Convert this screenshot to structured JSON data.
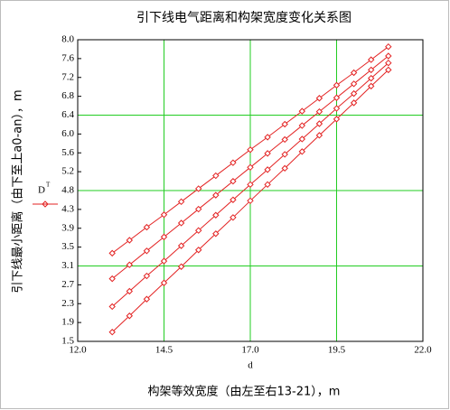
{
  "chart_data": {
    "type": "line",
    "title": "引下线电气距离和构架宽度变化关系图",
    "x_label": "d",
    "caption": "构架等效宽度（由左至右13-21），m",
    "y_label": "引下线最小距离（由下至上a0-an），m",
    "legend": {
      "label": "D",
      "sup": "T"
    },
    "color": "#e32222",
    "grid": true,
    "grid_color": "#22cc22",
    "x": [
      13,
      13.5,
      14,
      14.5,
      15,
      15.5,
      16,
      16.5,
      17,
      17.5,
      18,
      18.5,
      19,
      19.5,
      20,
      20.5,
      21
    ],
    "series": [
      {
        "values": [
          3.4,
          3.68,
          3.96,
          4.23,
          4.51,
          4.79,
          5.07,
          5.35,
          5.63,
          5.9,
          6.18,
          6.46,
          6.74,
          7.02,
          7.29,
          7.57,
          7.85
        ]
      },
      {
        "values": [
          2.85,
          3.15,
          3.45,
          3.75,
          4.05,
          4.35,
          4.65,
          4.95,
          5.25,
          5.55,
          5.85,
          6.15,
          6.45,
          6.75,
          7.05,
          7.35,
          7.65
        ]
      },
      {
        "values": [
          2.25,
          2.58,
          2.91,
          3.23,
          3.56,
          3.89,
          4.22,
          4.55,
          4.88,
          5.2,
          5.53,
          5.86,
          6.19,
          6.52,
          6.84,
          7.17,
          7.5
        ]
      },
      {
        "values": [
          1.7,
          2.05,
          2.41,
          2.76,
          3.11,
          3.47,
          3.82,
          4.17,
          4.53,
          4.88,
          5.23,
          5.59,
          5.94,
          6.29,
          6.64,
          7.0,
          7.35
        ]
      }
    ],
    "xlim": [
      12,
      22
    ],
    "xticks": [
      {
        "value": 12,
        "label": "12.0"
      },
      {
        "value": 14.5,
        "label": "14.5"
      },
      {
        "value": 17,
        "label": "17.0"
      },
      {
        "value": 19.5,
        "label": "19.5"
      },
      {
        "value": 22,
        "label": "22.0"
      }
    ],
    "ylim": [
      1.5,
      8
    ],
    "yticks": [
      1.5,
      {
        "value": 1.90625,
        "label": "1.9"
      },
      {
        "value": 2.3125,
        "label": "2.3"
      },
      {
        "value": 2.71875,
        "label": "2.7"
      },
      {
        "value": 3.125,
        "label": "3.1"
      },
      {
        "value": 3.53125,
        "label": "3.5"
      },
      {
        "value": 3.9375,
        "label": "3.9"
      },
      {
        "value": 4.34375,
        "label": "4.3"
      },
      {
        "value": 4.75,
        "label": "4.8"
      },
      {
        "value": 5.15625,
        "label": "5.2"
      },
      {
        "value": 5.5625,
        "label": "5.6"
      },
      {
        "value": 5.96875,
        "label": "6.0"
      },
      {
        "value": 6.375,
        "label": "6.4"
      },
      {
        "value": 6.78125,
        "label": "6.8"
      },
      {
        "value": 7.1875,
        "label": "7.2"
      },
      {
        "value": 7.59375,
        "label": "7.6"
      },
      {
        "value": 8,
        "label": "8.0"
      }
    ]
  }
}
